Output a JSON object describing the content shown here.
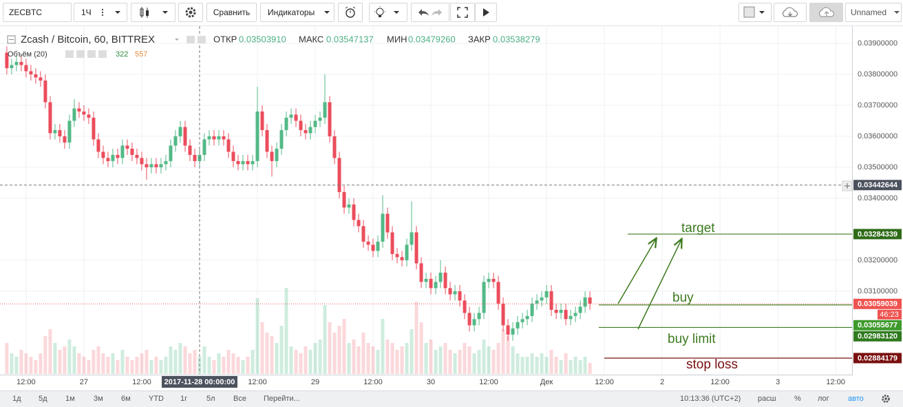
{
  "toolbar": {
    "symbol": "ZECBTC",
    "interval": "1Ч",
    "compare": "Сравнить",
    "indicators": "Индикаторы",
    "layout_name": "Unnamed"
  },
  "legend": {
    "title": "Zcash / Bitcoin, 60, BITTREX",
    "open_label": "ОТКР",
    "open": "0.03503910",
    "high_label": "МАКС",
    "high": "0.03547137",
    "low_label": "МИН",
    "low": "0.03479260",
    "close_label": "ЗАКР",
    "close": "0.03538279",
    "volume_label": "Объём (20)"
  },
  "chart_data": {
    "type": "candlestick",
    "up_color": "#53b987",
    "down_color": "#eb4d5c",
    "volume_up_color": "rgba(83,185,135,0.28)",
    "volume_down_color": "rgba(235,77,92,0.22)",
    "grid": true,
    "xlim": [
      -0.7,
      175.4
    ],
    "xticks": [
      {
        "value": 4,
        "label": "12:00"
      },
      {
        "value": 16,
        "label": "27"
      },
      {
        "value": 28,
        "label": "12:00"
      },
      {
        "value": 52,
        "label": "12:00"
      },
      {
        "value": 64,
        "label": "29"
      },
      {
        "value": 76,
        "label": "12:00"
      },
      {
        "value": 88,
        "label": "30"
      },
      {
        "value": 100,
        "label": "12:00"
      },
      {
        "value": 112,
        "label": "Дек"
      },
      {
        "value": 124,
        "label": "12:00"
      },
      {
        "value": 136,
        "label": "2"
      },
      {
        "value": 148,
        "label": "12:00"
      },
      {
        "value": 160,
        "label": "3"
      },
      {
        "value": 172,
        "label": "12:00"
      }
    ],
    "ylim": [
      0.02833,
      0.03951
    ],
    "yticks": [
      {
        "value": 0.039,
        "label": "0.03900000"
      },
      {
        "value": 0.038,
        "label": "0.03800000"
      },
      {
        "value": 0.037,
        "label": "0.03700000"
      },
      {
        "value": 0.036,
        "label": "0.03600000"
      },
      {
        "value": 0.035,
        "label": "0.03500000"
      },
      {
        "value": 0.034,
        "label": "0.03400000"
      },
      {
        "value": 0.032,
        "label": "0.03200000"
      },
      {
        "value": 0.031,
        "label": "0.03100000"
      }
    ],
    "candles": [
      [
        0.0387,
        0.0389,
        0.038,
        0.0382,
        900
      ],
      [
        0.0382,
        0.0385,
        0.038,
        0.0383,
        600
      ],
      [
        0.0383,
        0.0386,
        0.0381,
        0.0384,
        500
      ],
      [
        0.0384,
        0.0386,
        0.0381,
        0.0383,
        700
      ],
      [
        0.0383,
        0.0385,
        0.0379,
        0.0381,
        600
      ],
      [
        0.0381,
        0.0383,
        0.0378,
        0.038,
        500
      ],
      [
        0.038,
        0.0382,
        0.0377,
        0.0379,
        400
      ],
      [
        0.0379,
        0.0381,
        0.0376,
        0.0378,
        600
      ],
      [
        0.0378,
        0.038,
        0.0369,
        0.0371,
        1100
      ],
      [
        0.0371,
        0.0373,
        0.0359,
        0.0361,
        1300
      ],
      [
        0.0361,
        0.0364,
        0.0359,
        0.0362,
        900
      ],
      [
        0.0362,
        0.0364,
        0.0358,
        0.036,
        700
      ],
      [
        0.036,
        0.0362,
        0.0356,
        0.0358,
        800
      ],
      [
        0.0358,
        0.0367,
        0.0356,
        0.0365,
        1000
      ],
      [
        0.0365,
        0.0372,
        0.0363,
        0.0369,
        800
      ],
      [
        0.0369,
        0.0371,
        0.0366,
        0.0368,
        600
      ],
      [
        0.0368,
        0.037,
        0.0365,
        0.0367,
        500
      ],
      [
        0.0367,
        0.0369,
        0.0364,
        0.0366,
        400
      ],
      [
        0.0366,
        0.0368,
        0.0357,
        0.0359,
        700
      ],
      [
        0.0359,
        0.0361,
        0.0353,
        0.0355,
        800
      ],
      [
        0.0355,
        0.0357,
        0.0351,
        0.0353,
        600
      ],
      [
        0.0353,
        0.0355,
        0.035,
        0.0352,
        500
      ],
      [
        0.0352,
        0.0356,
        0.035,
        0.0354,
        600
      ],
      [
        0.0354,
        0.0356,
        0.0351,
        0.0353,
        400
      ],
      [
        0.0353,
        0.0359,
        0.0351,
        0.0357,
        700
      ],
      [
        0.0357,
        0.0359,
        0.0354,
        0.0356,
        500
      ],
      [
        0.0356,
        0.0358,
        0.0352,
        0.0354,
        400
      ],
      [
        0.0354,
        0.0356,
        0.0351,
        0.0353,
        500
      ],
      [
        0.0353,
        0.0355,
        0.0349,
        0.0351,
        600
      ],
      [
        0.0351,
        0.0353,
        0.0346,
        0.035,
        700
      ],
      [
        0.035,
        0.0353,
        0.0348,
        0.0351,
        400
      ],
      [
        0.0351,
        0.0353,
        0.0348,
        0.035,
        500
      ],
      [
        0.035,
        0.0353,
        0.0348,
        0.0351,
        400
      ],
      [
        0.0351,
        0.0354,
        0.0349,
        0.0352,
        500
      ],
      [
        0.0352,
        0.0359,
        0.035,
        0.0357,
        800
      ],
      [
        0.0357,
        0.0362,
        0.0355,
        0.036,
        700
      ],
      [
        0.036,
        0.0365,
        0.0358,
        0.0363,
        900
      ],
      [
        0.0363,
        0.0365,
        0.0355,
        0.0357,
        800
      ],
      [
        0.0357,
        0.0359,
        0.0352,
        0.0354,
        600
      ],
      [
        0.0354,
        0.0356,
        0.035,
        0.0352,
        700
      ],
      [
        0.0352,
        0.0356,
        0.035,
        0.0354,
        500
      ],
      [
        0.0354,
        0.0361,
        0.0352,
        0.0359,
        800
      ],
      [
        0.0359,
        0.0362,
        0.0357,
        0.036,
        500
      ],
      [
        0.036,
        0.0362,
        0.0357,
        0.0359,
        400
      ],
      [
        0.0359,
        0.0362,
        0.0357,
        0.036,
        600
      ],
      [
        0.036,
        0.0362,
        0.0357,
        0.0359,
        500
      ],
      [
        0.0359,
        0.0361,
        0.0353,
        0.0355,
        700
      ],
      [
        0.0355,
        0.0357,
        0.035,
        0.0352,
        600
      ],
      [
        0.0352,
        0.0354,
        0.0349,
        0.0351,
        500
      ],
      [
        0.0351,
        0.0354,
        0.0349,
        0.0352,
        400
      ],
      [
        0.0352,
        0.0354,
        0.0349,
        0.0351,
        500
      ],
      [
        0.0351,
        0.0354,
        0.0349,
        0.0352,
        700
      ],
      [
        0.0352,
        0.0376,
        0.035,
        0.0368,
        2200
      ],
      [
        0.0368,
        0.037,
        0.036,
        0.0362,
        1500
      ],
      [
        0.0362,
        0.0364,
        0.0353,
        0.0355,
        1200
      ],
      [
        0.0355,
        0.0357,
        0.0347,
        0.0352,
        1100
      ],
      [
        0.0352,
        0.0358,
        0.035,
        0.0356,
        900
      ],
      [
        0.0356,
        0.0364,
        0.0354,
        0.0362,
        1400
      ],
      [
        0.0362,
        0.0368,
        0.036,
        0.0366,
        2500
      ],
      [
        0.0366,
        0.0369,
        0.0364,
        0.0367,
        800
      ],
      [
        0.0367,
        0.0369,
        0.0363,
        0.0365,
        700
      ],
      [
        0.0365,
        0.0367,
        0.036,
        0.0362,
        600
      ],
      [
        0.0362,
        0.0364,
        0.0359,
        0.0361,
        800
      ],
      [
        0.0361,
        0.0365,
        0.0359,
        0.0363,
        700
      ],
      [
        0.0363,
        0.0367,
        0.0361,
        0.0365,
        900
      ],
      [
        0.0365,
        0.0368,
        0.0363,
        0.0366,
        1000
      ],
      [
        0.0366,
        0.038,
        0.0364,
        0.0371,
        2000
      ],
      [
        0.0371,
        0.0373,
        0.0358,
        0.036,
        1500
      ],
      [
        0.036,
        0.0362,
        0.0351,
        0.0353,
        1200
      ],
      [
        0.0353,
        0.0355,
        0.034,
        0.0342,
        1400
      ],
      [
        0.0342,
        0.0344,
        0.0335,
        0.0337,
        1600
      ],
      [
        0.0337,
        0.034,
        0.0335,
        0.0338,
        900
      ],
      [
        0.0338,
        0.034,
        0.0331,
        0.0333,
        1000
      ],
      [
        0.0333,
        0.0335,
        0.0329,
        0.0331,
        800
      ],
      [
        0.0331,
        0.0333,
        0.0324,
        0.0326,
        1200
      ],
      [
        0.0326,
        0.0328,
        0.0323,
        0.0325,
        900
      ],
      [
        0.0325,
        0.0327,
        0.0321,
        0.0323,
        800
      ],
      [
        0.0323,
        0.0328,
        0.0321,
        0.0326,
        700
      ],
      [
        0.0326,
        0.0341,
        0.0324,
        0.0335,
        1600
      ],
      [
        0.0335,
        0.0337,
        0.0327,
        0.0329,
        1000
      ],
      [
        0.0329,
        0.0331,
        0.032,
        0.0322,
        900
      ],
      [
        0.0322,
        0.0324,
        0.0319,
        0.0321,
        700
      ],
      [
        0.0321,
        0.0323,
        0.0318,
        0.032,
        800
      ],
      [
        0.032,
        0.0327,
        0.0318,
        0.0325,
        900
      ],
      [
        0.0325,
        0.0339,
        0.0323,
        0.0329,
        1300
      ],
      [
        0.0329,
        0.0331,
        0.0317,
        0.0319,
        2100
      ],
      [
        0.0319,
        0.0321,
        0.0311,
        0.0313,
        1500
      ],
      [
        0.0313,
        0.0316,
        0.0311,
        0.0314,
        900
      ],
      [
        0.0314,
        0.0316,
        0.0309,
        0.0311,
        1000
      ],
      [
        0.0311,
        0.0315,
        0.0309,
        0.0313,
        700
      ],
      [
        0.0313,
        0.032,
        0.0311,
        0.0316,
        800
      ],
      [
        0.0316,
        0.0318,
        0.0309,
        0.0311,
        900
      ],
      [
        0.0311,
        0.0313,
        0.0307,
        0.0309,
        700
      ],
      [
        0.0309,
        0.0312,
        0.0307,
        0.031,
        600
      ],
      [
        0.031,
        0.0312,
        0.0305,
        0.0307,
        700
      ],
      [
        0.0307,
        0.0309,
        0.0301,
        0.0303,
        900
      ],
      [
        0.0303,
        0.0305,
        0.0297,
        0.0299,
        800
      ],
      [
        0.0299,
        0.0303,
        0.0297,
        0.0301,
        600
      ],
      [
        0.0301,
        0.0305,
        0.0299,
        0.0303,
        700
      ],
      [
        0.0303,
        0.0315,
        0.0301,
        0.0313,
        1000
      ],
      [
        0.0313,
        0.0316,
        0.0311,
        0.0314,
        800
      ],
      [
        0.0314,
        0.0316,
        0.0311,
        0.0313,
        700
      ],
      [
        0.0313,
        0.0315,
        0.0304,
        0.0306,
        900
      ],
      [
        0.0306,
        0.0308,
        0.0297,
        0.0299,
        1300
      ],
      [
        0.0299,
        0.0301,
        0.0294,
        0.0296,
        1100
      ],
      [
        0.0296,
        0.03,
        0.0294,
        0.0298,
        800
      ],
      [
        0.0298,
        0.0302,
        0.0296,
        0.03,
        600
      ],
      [
        0.03,
        0.0303,
        0.0298,
        0.0301,
        500
      ],
      [
        0.0301,
        0.0304,
        0.0299,
        0.0302,
        500
      ],
      [
        0.0302,
        0.0308,
        0.03,
        0.0306,
        600
      ],
      [
        0.0306,
        0.0309,
        0.0304,
        0.0307,
        500
      ],
      [
        0.0307,
        0.031,
        0.0305,
        0.0308,
        600
      ],
      [
        0.0308,
        0.0312,
        0.0306,
        0.031,
        500
      ],
      [
        0.031,
        0.0312,
        0.0302,
        0.0304,
        700
      ],
      [
        0.0304,
        0.0306,
        0.0301,
        0.0303,
        500
      ],
      [
        0.0303,
        0.0306,
        0.0301,
        0.0304,
        400
      ],
      [
        0.0304,
        0.0306,
        0.0299,
        0.0301,
        600
      ],
      [
        0.0301,
        0.0304,
        0.0299,
        0.0302,
        400
      ],
      [
        0.0302,
        0.0305,
        0.03,
        0.0303,
        500
      ],
      [
        0.0303,
        0.0307,
        0.0301,
        0.0305,
        400
      ],
      [
        0.0305,
        0.031,
        0.0303,
        0.0308,
        500
      ],
      [
        0.0308,
        0.031,
        0.0304,
        0.0306,
        322
      ]
    ],
    "volume_ma": 557,
    "crosshair": {
      "x": 40,
      "x_label": "2017-11-28 00:00:00",
      "y": 0.03442644
    },
    "current_price": {
      "value": 0.03059039,
      "countdown": "46:23",
      "color": "#ef5350"
    },
    "levels": [
      {
        "name": "target",
        "value": 0.03284339,
        "color": "#3b7a1e",
        "label_color": "#2e6b17"
      },
      {
        "name": "buy",
        "value": 0.03055677,
        "color": "#3b7a1e",
        "label_color": "#3e9a2c"
      },
      {
        "name": "buy limit",
        "value": 0.0298312,
        "value_label": "0.02983120",
        "color": "#3b7a1e",
        "label_color": "#2f7a1e"
      },
      {
        "name": "stop loss",
        "value": 0.02884179,
        "color": "#7a1010",
        "label_color": "#7a1010"
      }
    ]
  },
  "bottom_bar": {
    "ranges": [
      "1д",
      "5д",
      "1м",
      "3м",
      "6м",
      "YTD",
      "1г",
      "5л",
      "Все"
    ],
    "goto": "Перейти...",
    "clock": "10:13:36 (UTC+2)",
    "options": [
      "расш",
      "%",
      "лог",
      "авто"
    ]
  }
}
